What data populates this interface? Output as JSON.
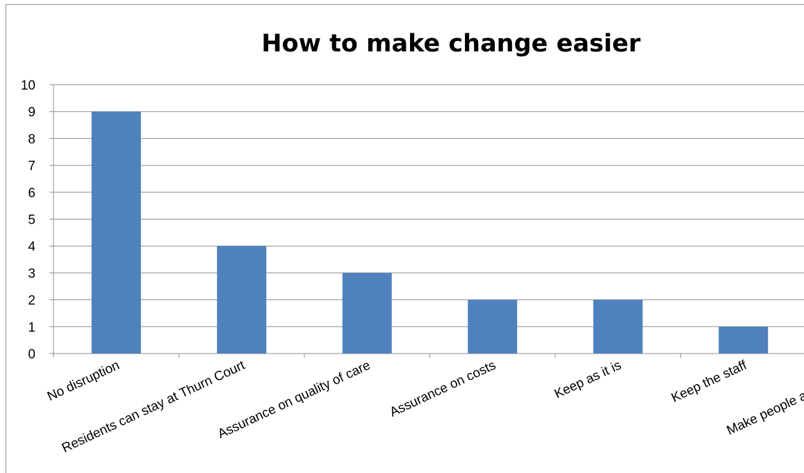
{
  "chart_data": {
    "type": "bar",
    "title": "How to make change easier",
    "xlabel": "",
    "ylabel": "",
    "categories": [
      "No disruption",
      "Residents can stay at Thurn Court",
      "Assurance on quality of care",
      "Assurance on costs",
      "Keep as it is",
      "Keep the staff",
      "Make people aware of help"
    ],
    "values": [
      9,
      4,
      3,
      2,
      2,
      1,
      0
    ],
    "ylim": [
      0,
      10
    ],
    "yticks": [
      0,
      1,
      2,
      3,
      4,
      5,
      6,
      7,
      8,
      9,
      10
    ],
    "grid": true,
    "legend": "none",
    "bar_color": "#4f81bd"
  }
}
